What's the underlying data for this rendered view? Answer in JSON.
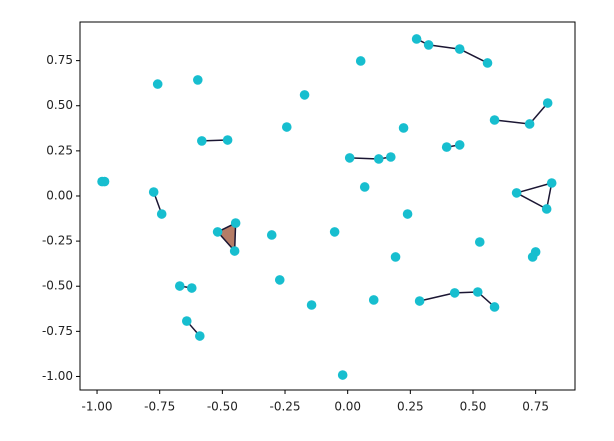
{
  "chart_data": {
    "type": "scatter",
    "x": [
      -0.98,
      -0.97,
      -0.774,
      -0.742,
      -0.758,
      -0.598,
      -0.582,
      -0.479,
      -0.519,
      -0.447,
      -0.451,
      -0.67,
      -0.622,
      -0.642,
      -0.59,
      -0.303,
      -0.271,
      -0.144,
      -0.243,
      -0.172,
      -0.052,
      -0.02,
      0.052,
      0.008,
      0.124,
      0.172,
      0.068,
      0.104,
      0.191,
      0.239,
      0.223,
      0.275,
      0.323,
      0.447,
      0.558,
      0.395,
      0.447,
      0.586,
      0.726,
      0.798,
      0.674,
      0.814,
      0.794,
      0.527,
      0.75,
      0.738,
      0.287,
      0.427,
      0.519,
      0.586
    ],
    "y": [
      0.08,
      0.08,
      0.022,
      -0.1,
      0.62,
      0.643,
      0.305,
      0.31,
      -0.199,
      -0.15,
      -0.305,
      -0.499,
      -0.51,
      -0.693,
      -0.776,
      -0.216,
      -0.465,
      -0.604,
      0.382,
      0.56,
      -0.199,
      -0.992,
      0.748,
      0.211,
      0.205,
      0.216,
      0.05,
      -0.576,
      -0.338,
      -0.1,
      0.377,
      0.87,
      0.837,
      0.814,
      0.737,
      0.271,
      0.283,
      0.421,
      0.399,
      0.515,
      0.017,
      0.072,
      -0.072,
      -0.255,
      -0.31,
      -0.338,
      -0.582,
      -0.537,
      -0.532,
      -0.615
    ],
    "color": "#17becf",
    "edges": [
      [
        0,
        1
      ],
      [
        2,
        3
      ],
      [
        6,
        7
      ],
      [
        8,
        9
      ],
      [
        9,
        10
      ],
      [
        10,
        8
      ],
      [
        11,
        12
      ],
      [
        13,
        14
      ],
      [
        23,
        24
      ],
      [
        24,
        25
      ],
      [
        31,
        32
      ],
      [
        32,
        33
      ],
      [
        33,
        34
      ],
      [
        35,
        36
      ],
      [
        37,
        38
      ],
      [
        38,
        39
      ],
      [
        40,
        41
      ],
      [
        41,
        42
      ],
      [
        42,
        40
      ],
      [
        44,
        45
      ],
      [
        46,
        47
      ],
      [
        47,
        48
      ],
      [
        48,
        49
      ]
    ],
    "edge_color": "#1b1633",
    "triangles": [
      [
        8,
        9,
        10
      ]
    ],
    "triangle_color": "#b57c66",
    "xlim": [
      -1.068,
      0.907
    ],
    "ylim": [
      -1.075,
      0.964
    ],
    "xticks": [
      {
        "value": -1,
        "label": "-1.00"
      },
      -0.75,
      {
        "value": -0.5,
        "label": "-0.50"
      },
      -0.25,
      {
        "value": 0,
        "label": "0.00"
      },
      0.25,
      {
        "value": 0.5,
        "label": "0.50"
      },
      0.75
    ],
    "yticks": [
      {
        "value": -1,
        "label": "-1.00"
      },
      -0.75,
      {
        "value": -0.5,
        "label": "-0.50"
      },
      -0.25,
      {
        "value": 0,
        "label": "0.00"
      },
      0.25,
      {
        "value": 0.5,
        "label": "0.50"
      },
      0.75
    ]
  }
}
